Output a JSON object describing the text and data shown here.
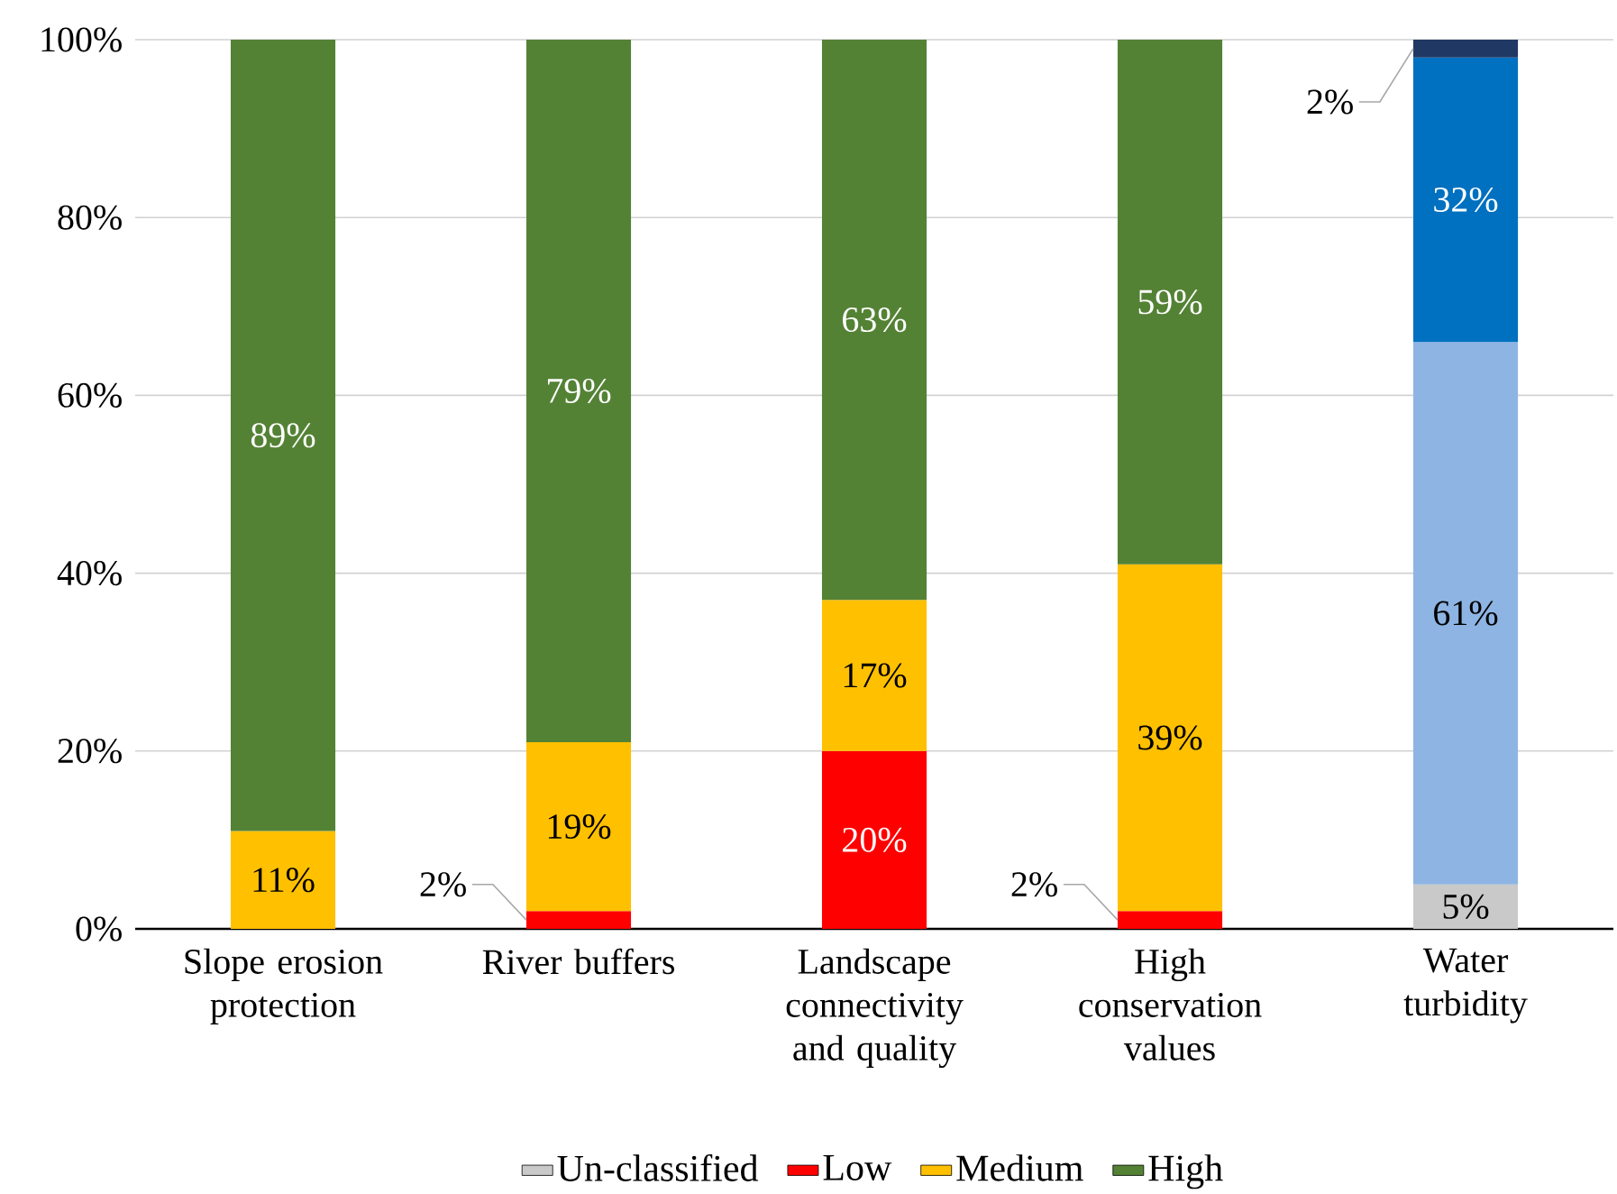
{
  "chart_data": {
    "type": "bar",
    "stacked": true,
    "categories": [
      "Slope erosion protection",
      "River buffers",
      "Landscape connectivity and quality",
      "High conservation values",
      "Water turbidity"
    ],
    "series": [
      {
        "name": "Un-classified",
        "color": "#c9c9c9",
        "colors": [
          "#c9c9c9",
          "#c9c9c9",
          "#c9c9c9",
          "#c9c9c9",
          "#c9c9c9"
        ],
        "values": [
          0,
          0,
          0,
          0,
          5
        ],
        "value_labels": [
          null,
          null,
          null,
          null,
          "5%"
        ]
      },
      {
        "name": "Low",
        "color": "#ff0000",
        "colors": [
          "#ff0000",
          "#ff0000",
          "#ff0000",
          "#ff0000",
          "#8eb4e3"
        ],
        "values": [
          0,
          2,
          20,
          2,
          61
        ],
        "value_labels": [
          null,
          "2%",
          "20%",
          "2%",
          "61%"
        ]
      },
      {
        "name": "Medium",
        "color": "#ffc000",
        "colors": [
          "#ffc000",
          "#ffc000",
          "#ffc000",
          "#ffc000",
          "#0070c0"
        ],
        "values": [
          11,
          19,
          17,
          39,
          32
        ],
        "value_labels": [
          "11%",
          "19%",
          "17%",
          "39%",
          "32%"
        ]
      },
      {
        "name": "High",
        "color": "#548235",
        "colors": [
          "#548235",
          "#548235",
          "#548235",
          "#548235",
          "#1f3864"
        ],
        "values": [
          89,
          79,
          63,
          59,
          2
        ],
        "value_labels": [
          "89%",
          "79%",
          "63%",
          "59%",
          "2%"
        ]
      }
    ],
    "ylim": [
      0,
      100
    ],
    "yticks": [
      {
        "value": 0,
        "label": "0%"
      },
      {
        "value": 20,
        "label": "20%"
      },
      {
        "value": 40,
        "label": "40%"
      },
      {
        "value": 60,
        "label": "60%"
      },
      {
        "value": 80,
        "label": "80%"
      },
      {
        "value": 100,
        "label": "100%"
      }
    ],
    "grid": "y",
    "legend": "bottom"
  }
}
